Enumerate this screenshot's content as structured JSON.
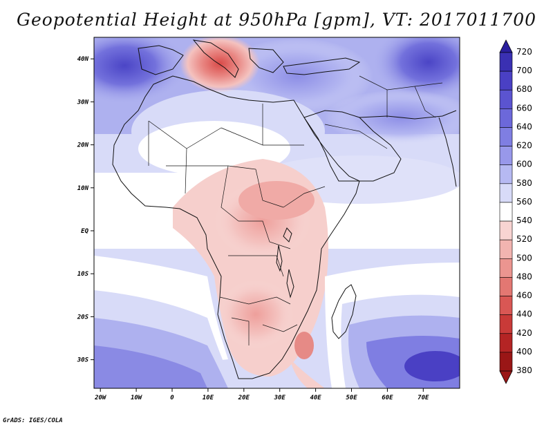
{
  "title": "Geopotential Height at 950hPa [gpm], VT: 2017011700",
  "credit": "GrADS: IGES/COLA",
  "map": {
    "lat_labels": [
      {
        "lat": 40,
        "label": "40N"
      },
      {
        "lat": 30,
        "label": "30N"
      },
      {
        "lat": 20,
        "label": "20N"
      },
      {
        "lat": 10,
        "label": "10N"
      },
      {
        "lat": 0,
        "label": "EQ"
      },
      {
        "lat": -10,
        "label": "10S"
      },
      {
        "lat": -20,
        "label": "20S"
      },
      {
        "lat": -30,
        "label": "30S"
      }
    ],
    "lon_labels": [
      {
        "lon": -20,
        "label": "20W"
      },
      {
        "lon": -10,
        "label": "10W"
      },
      {
        "lon": 0,
        "label": "0"
      },
      {
        "lon": 10,
        "label": "10E"
      },
      {
        "lon": 20,
        "label": "20E"
      },
      {
        "lon": 30,
        "label": "30E"
      },
      {
        "lon": 40,
        "label": "40E"
      },
      {
        "lon": 50,
        "label": "50E"
      },
      {
        "lon": 60,
        "label": "60E"
      },
      {
        "lon": 70,
        "label": "70E"
      }
    ]
  },
  "colorbar": {
    "levels": [
      "720",
      "700",
      "680",
      "660",
      "640",
      "620",
      "600",
      "580",
      "560",
      "540",
      "520",
      "500",
      "480",
      "460",
      "440",
      "420",
      "400",
      "380"
    ],
    "colors": [
      "#2a1f9e",
      "#3a30b2",
      "#4a40c4",
      "#5b54d0",
      "#6c68da",
      "#7f7ee2",
      "#9898ea",
      "#b6b9f2",
      "#d8dbf8",
      "#ffffff",
      "#f8d4d2",
      "#f2b4b0",
      "#eb9590",
      "#e37772",
      "#d95754",
      "#c93a38",
      "#b42424",
      "#9a1616"
    ]
  }
}
